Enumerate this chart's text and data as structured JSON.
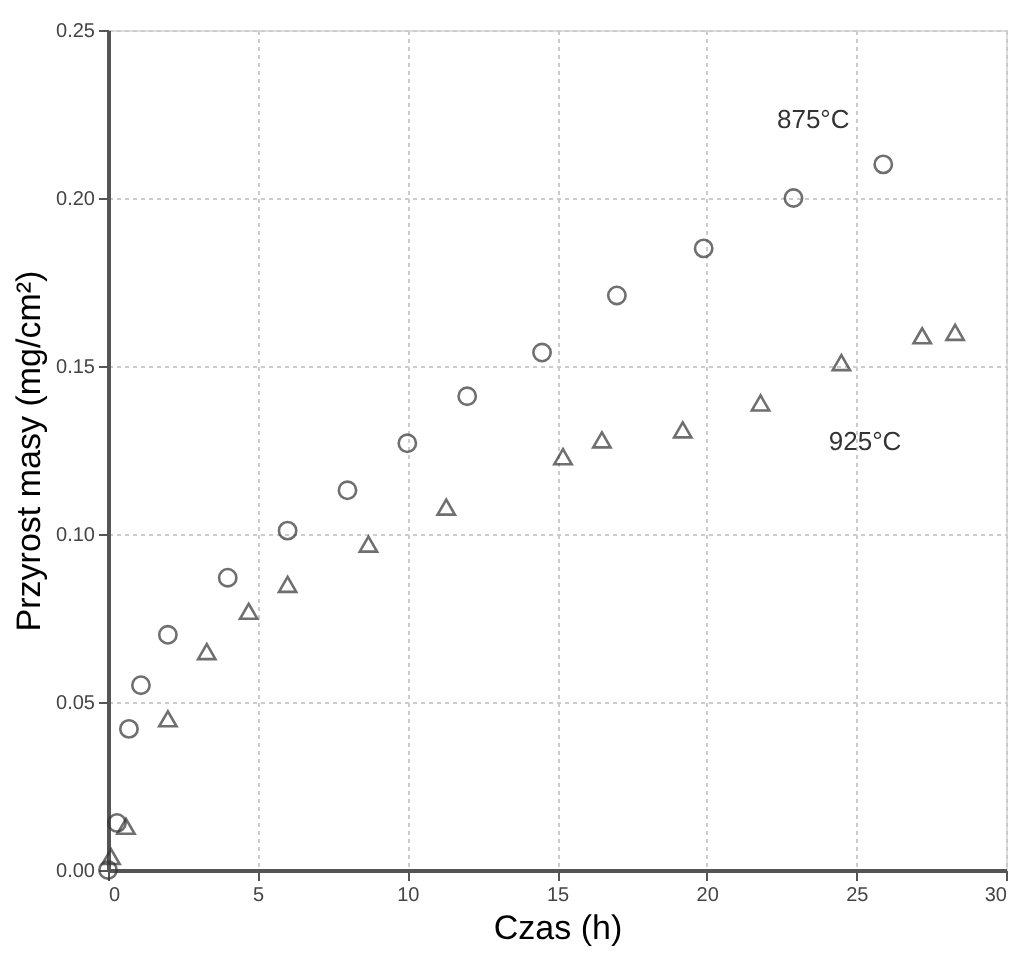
{
  "chart_data": {
    "type": "scatter",
    "xlabel": "Czas (h)",
    "ylabel": "Przyrost masy (mg/cm²)",
    "xlim": [
      0,
      30
    ],
    "xticks": [
      0,
      5,
      10,
      15,
      20,
      25,
      30
    ],
    "ylim": [
      0,
      0.25
    ],
    "yticks": [
      {
        "value": 0,
        "label": "0.00"
      },
      {
        "value": 0.05,
        "label": "0.05"
      },
      {
        "value": 0.1,
        "label": "0.10"
      },
      {
        "value": 0.15,
        "label": "0.15"
      },
      {
        "value": 0.2,
        "label": "0.20"
      },
      {
        "value": 0.25,
        "label": "0.25"
      }
    ],
    "grid": true,
    "series": [
      {
        "name": "875°C",
        "color": "#333333",
        "marker": "circle",
        "x": [
          0,
          0.3,
          0.7,
          1.1,
          2,
          4,
          6,
          8,
          10,
          12,
          14.5,
          17,
          19.9,
          22.9,
          25.9
        ],
        "values": [
          0,
          0.014,
          0.042,
          0.055,
          0.07,
          0.087,
          0.101,
          0.113,
          0.127,
          0.141,
          0.154,
          0.171,
          0.185,
          0.2,
          0.21
        ]
      },
      {
        "name": "925°C",
        "color": "#333333",
        "marker": "triangle",
        "x": [
          0.1,
          0.6,
          2,
          3.3,
          4.7,
          6,
          8.7,
          11.3,
          15.2,
          16.5,
          19.2,
          21.8,
          24.5,
          27.2,
          28.3
        ],
        "values": [
          0.004,
          0.013,
          0.045,
          0.065,
          0.077,
          0.085,
          0.097,
          0.108,
          0.123,
          0.128,
          0.131,
          0.139,
          0.151,
          0.159,
          0.16
        ]
      }
    ]
  }
}
